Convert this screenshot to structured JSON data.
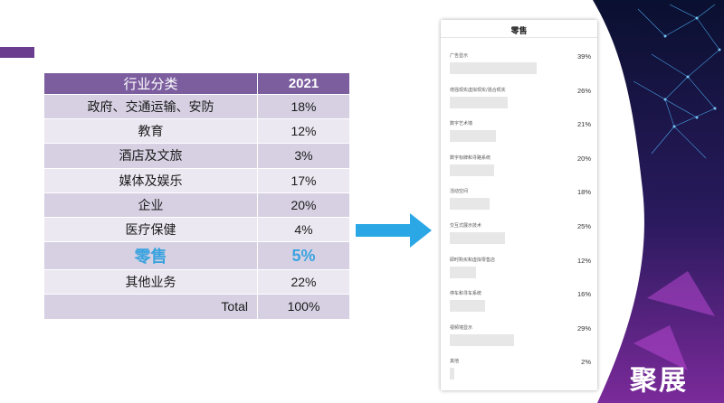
{
  "table": {
    "header": {
      "category": "行业分类",
      "year": "2021"
    },
    "rows": [
      {
        "label": "政府、交通运输、安防",
        "value": "18%"
      },
      {
        "label": "教育",
        "value": "12%"
      },
      {
        "label": "酒店及文旅",
        "value": "3%"
      },
      {
        "label": "媒体及娱乐",
        "value": "17%"
      },
      {
        "label": "企业",
        "value": "20%"
      },
      {
        "label": "医疗保健",
        "value": "4%"
      },
      {
        "label": "零售",
        "value": "5%"
      },
      {
        "label": "其他业务",
        "value": "22%"
      },
      {
        "label": "Total",
        "value": "100%"
      }
    ],
    "highlight_color": "#3aa3df",
    "header_color": "#7c5e9f"
  },
  "panel": {
    "title": "零售",
    "items": [
      {
        "label": "广告显示",
        "value": "39%",
        "fill": 0.39
      },
      {
        "label": "增强现实虚拟现实/混合现实",
        "value": "26%",
        "fill": 0.26
      },
      {
        "label": "数字艺术墙",
        "value": "21%",
        "fill": 0.21
      },
      {
        "label": "数字标牌和寻路系统",
        "value": "20%",
        "fill": 0.2
      },
      {
        "label": "活动空间",
        "value": "18%",
        "fill": 0.18
      },
      {
        "label": "交互式展示技术",
        "value": "25%",
        "fill": 0.25
      },
      {
        "label": "即时购买和虚拟零售店",
        "value": "12%",
        "fill": 0.12
      },
      {
        "label": "停车和寻车系统",
        "value": "16%",
        "fill": 0.16
      },
      {
        "label": "视频墙显示",
        "value": "29%",
        "fill": 0.29
      },
      {
        "label": "其他",
        "value": "2%",
        "fill": 0.02
      }
    ]
  },
  "logo_text": "聚展",
  "icons": {
    "arrow": "right-arrow-icon"
  },
  "colors": {
    "arrow": "#2aa7e4",
    "accent": "#6a3d8e"
  }
}
